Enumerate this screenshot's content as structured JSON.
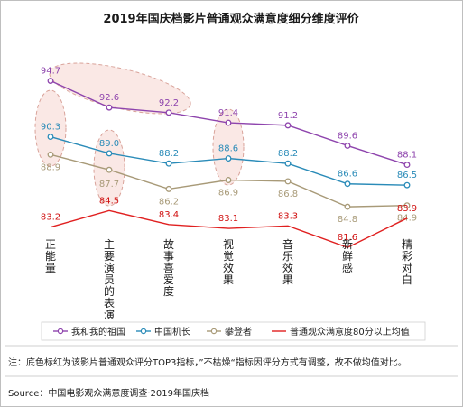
{
  "chart_data": {
    "type": "line",
    "title": "2019年国庆档影片普通观众满意度细分维度评价",
    "categories": [
      "正能量",
      "主要演员的表演",
      "故事喜爱度",
      "视觉效果",
      "音乐效果",
      "新鲜感",
      "精彩对白"
    ],
    "series": [
      {
        "name": "我和我的祖国",
        "color": "#8e44ad",
        "values": [
          94.7,
          92.6,
          92.2,
          91.4,
          91.2,
          89.6,
          88.1
        ],
        "labels": [
          "94.7",
          "92.6",
          "92.2",
          "91.4",
          "91.2",
          "89.6",
          "88.1"
        ]
      },
      {
        "name": "中国机长",
        "color": "#2a8bb8",
        "values": [
          90.3,
          89.0,
          88.2,
          88.6,
          88.2,
          86.6,
          86.5
        ],
        "labels": [
          "90.3",
          "89.0",
          "88.2",
          "88.6",
          "88.2",
          "86.6",
          "86.5"
        ]
      },
      {
        "name": "攀登者",
        "color": "#a89a78",
        "values": [
          88.9,
          87.7,
          86.2,
          86.9,
          86.8,
          84.8,
          84.9
        ],
        "labels": [
          "88.9",
          "87.7",
          "86.2",
          "86.9",
          "86.8",
          "84.8",
          "84.9"
        ]
      },
      {
        "name": "普通观众满意度80分以上均值",
        "color": "#e02020",
        "values": [
          83.2,
          84.5,
          83.4,
          83.1,
          83.3,
          81.6,
          83.9
        ],
        "labels": [
          "83.2",
          "84.5",
          "83.4",
          "83.1",
          "83.3",
          "81.6",
          "83.9"
        ]
      }
    ],
    "highlight_color": "#f5d5cf",
    "grid": false,
    "legend_position": "bottom"
  },
  "footnote": "注：底色标红为该影片普通观众评分TOP3指标，”不枯燥“指标因评分方式有调整，故不做均值对比。",
  "source": "Source：中国电影观众满意度调查·2019年国庆档"
}
